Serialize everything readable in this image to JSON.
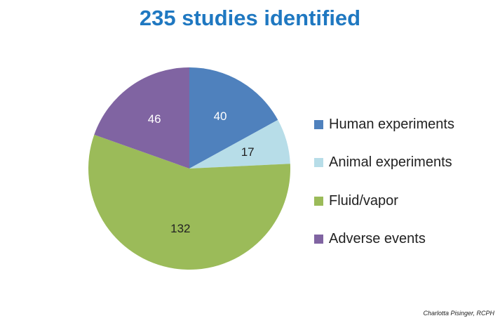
{
  "title": "235 studies identified",
  "credit": "Charlotta Pisinger, RCPH",
  "chart_data": {
    "type": "pie",
    "title": "235 studies identified",
    "categories": [
      "Human experiments",
      "Animal experiments",
      "Fluid/vapor",
      "Adverse events"
    ],
    "values": [
      40,
      17,
      132,
      46
    ],
    "colors": [
      "#4f81bd",
      "#b7dde8",
      "#9bbb59",
      "#8064a2"
    ],
    "label_colors": [
      "#ffffff",
      "#222222",
      "#222222",
      "#ffffff"
    ],
    "start_angle_deg": 0,
    "direction": "clockwise",
    "legend_position": "right"
  }
}
